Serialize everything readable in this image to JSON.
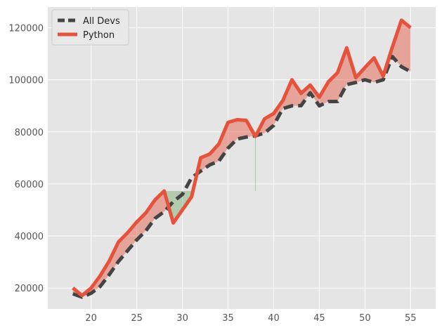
{
  "chart_data": {
    "type": "line",
    "title": "",
    "xlabel": "",
    "ylabel": "",
    "x": [
      18,
      19,
      20,
      21,
      22,
      23,
      24,
      25,
      26,
      27,
      28,
      29,
      30,
      31,
      32,
      33,
      34,
      35,
      36,
      37,
      38,
      39,
      40,
      41,
      42,
      43,
      44,
      45,
      46,
      47,
      48,
      49,
      50,
      51,
      52,
      53,
      54,
      55
    ],
    "series": [
      {
        "name": "All Devs",
        "color": "#444444",
        "style": "dashed",
        "values": [
          17784,
          16500,
          18012,
          20628,
          25206,
          30252,
          34368,
          38496,
          42000,
          46752,
          49320,
          53200,
          56000,
          62316,
          64928,
          67317,
          68748,
          73752,
          77232,
          78000,
          78508,
          79536,
          82488,
          88935,
          90000,
          90056,
          95000,
          90000,
          91633,
          91660,
          98150,
          98964,
          100000,
          98988,
          100000,
          108923,
          105000,
          103117
        ]
      },
      {
        "name": "Python",
        "color": "#e5533d",
        "style": "solid",
        "values": [
          20046,
          17100,
          20000,
          24744,
          30500,
          37732,
          41247,
          45372,
          48876,
          53850,
          57287,
          45000,
          50000,
          55000,
          70000,
          71496,
          75370,
          83640,
          84666,
          84392,
          78254,
          85000,
          87038,
          91991,
          100000,
          94796,
          97962,
          93302,
          99240,
          102736,
          112285,
          100771,
          104708,
          108423,
          101407,
          112542,
          122870,
          120000
        ]
      }
    ],
    "fill_between": {
      "threshold_value": 57287,
      "above_color": "#e5533d",
      "below_color": "#3a8a2a"
    },
    "xlim": [
      15.25,
      57.75
    ],
    "ylim": [
      11961,
      127955
    ],
    "xticks": [
      20,
      25,
      30,
      35,
      40,
      45,
      50,
      55
    ],
    "yticks": [
      20000,
      40000,
      60000,
      80000,
      100000,
      120000
    ],
    "grid": true,
    "legend_position": "upper-left",
    "theme": {
      "plot_background": "#e5e5e5",
      "grid_color": "#ffffff",
      "tick_color": "#555555"
    }
  }
}
